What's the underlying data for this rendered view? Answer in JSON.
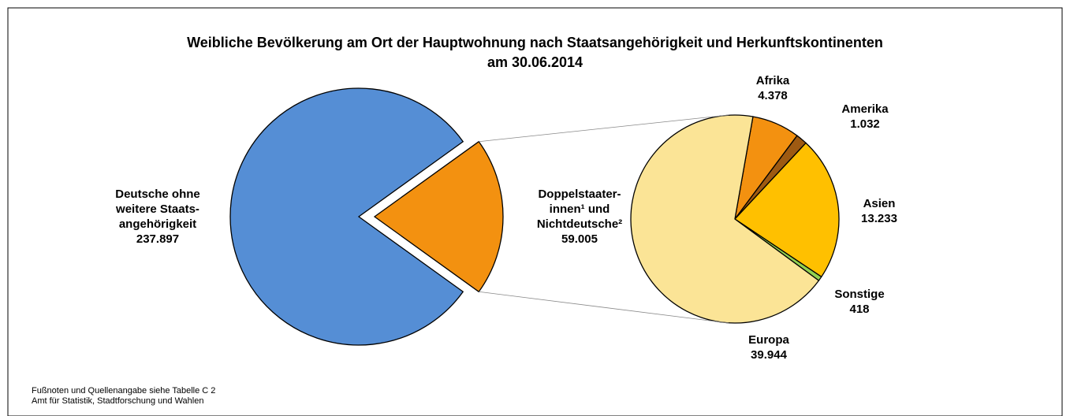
{
  "chart_data": [
    {
      "type": "pie",
      "title": "Weibliche Bevölkerung am Ort der Hauptwohnung nach Staatsangehörigkeit und Herkunftskontinenten\nam 30.06.2014",
      "categories": [
        "Deutsche ohne\nweitere Staats-\nangehörigkeit",
        "Doppelstaater-\ninnen¹ und\nNichtdeutsche²"
      ],
      "values": [
        237897,
        59005
      ],
      "value_labels": [
        "237.897",
        "59.005"
      ],
      "colors": [
        "#558ed5",
        "#f39110"
      ]
    },
    {
      "type": "pie",
      "categories": [
        "Afrika",
        "Amerika",
        "Asien",
        "Sonstige",
        "Europa"
      ],
      "values": [
        4378,
        1032,
        13233,
        418,
        39944
      ],
      "value_labels": [
        "4.378",
        "1.032",
        "13.233",
        "418",
        "39.944"
      ],
      "colors": [
        "#f39110",
        "#9e5a12",
        "#ffc000",
        "#92d050",
        "#fbe496"
      ]
    }
  ],
  "footnotes": [
    "Fußnoten und Quellenangabe siehe Tabelle C 2",
    "Amt für Statistik, Stadtforschung und Wahlen"
  ]
}
